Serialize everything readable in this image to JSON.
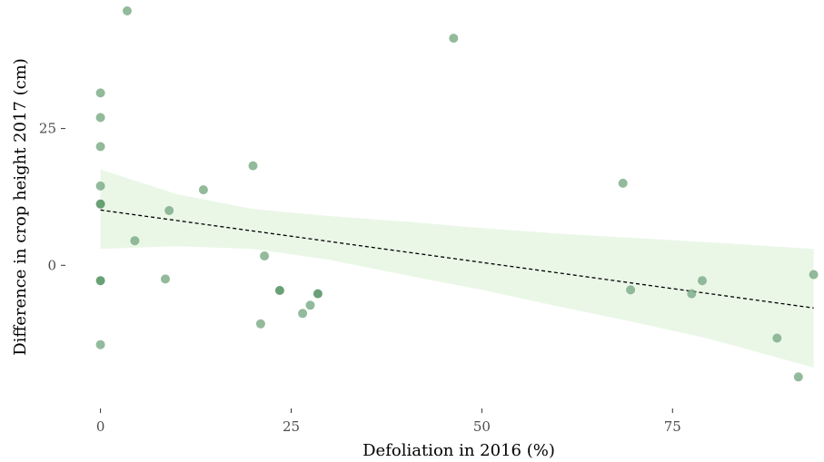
{
  "chart_data": {
    "type": "scatter",
    "title": "",
    "xlabel": "Defoliation in 2016 (%)",
    "ylabel": "Difference in crop height 2017 (cm)",
    "xlim": [
      -1.5,
      94.5
    ],
    "ylim": [
      -25.5,
      46.5
    ],
    "x_ticks": [
      0,
      25,
      50,
      75
    ],
    "y_ticks": [
      0,
      25
    ],
    "x_tick_labels": [
      "0",
      "25",
      "50",
      "75"
    ],
    "y_tick_labels": [
      "0",
      "25"
    ],
    "grid": false,
    "colors": {
      "point": "#7fae8a",
      "point_dark": "#4f8f5e",
      "ribbon": "#d9f0d3",
      "trend": "#000000",
      "tick_text": "#4d4d4d"
    },
    "points": [
      {
        "x": 3.5,
        "y": 46.5
      },
      {
        "x": 46.3,
        "y": 41.5
      },
      {
        "x": 0.0,
        "y": 31.5
      },
      {
        "x": 0.0,
        "y": 27.0
      },
      {
        "x": 0.0,
        "y": 21.7
      },
      {
        "x": 0.0,
        "y": 14.5
      },
      {
        "x": 0.0,
        "y": 11.2,
        "dark": true
      },
      {
        "x": 0.0,
        "y": -2.8,
        "dark": true
      },
      {
        "x": 0.0,
        "y": -14.5
      },
      {
        "x": 4.5,
        "y": 4.5
      },
      {
        "x": 8.5,
        "y": -2.5
      },
      {
        "x": 9.0,
        "y": 10.0
      },
      {
        "x": 13.5,
        "y": 13.8
      },
      {
        "x": 20.0,
        "y": 18.2
      },
      {
        "x": 21.0,
        "y": -10.7
      },
      {
        "x": 21.5,
        "y": 1.7
      },
      {
        "x": 23.5,
        "y": -4.6,
        "dark": true
      },
      {
        "x": 26.5,
        "y": -8.8
      },
      {
        "x": 27.5,
        "y": -7.3
      },
      {
        "x": 28.5,
        "y": -5.2,
        "dark": true
      },
      {
        "x": 68.5,
        "y": 15.0
      },
      {
        "x": 69.5,
        "y": -4.5
      },
      {
        "x": 77.5,
        "y": -5.2
      },
      {
        "x": 78.9,
        "y": -2.8
      },
      {
        "x": 88.7,
        "y": -13.3
      },
      {
        "x": 91.5,
        "y": -20.4
      },
      {
        "x": 93.5,
        "y": -1.7
      }
    ],
    "trend_line": {
      "style": "dashed",
      "x": [
        0,
        93.5
      ],
      "y": [
        10.1,
        -7.8
      ]
    },
    "confidence_band": {
      "x": [
        0,
        10,
        20,
        30,
        40,
        50,
        60,
        70,
        80,
        93.5
      ],
      "upper": [
        17.5,
        13.0,
        10.3,
        9.0,
        8.0,
        6.8,
        5.8,
        5.0,
        4.2,
        3.0
      ],
      "lower": [
        3.0,
        3.5,
        3.0,
        1.0,
        -1.8,
        -4.5,
        -7.5,
        -10.4,
        -13.5,
        -18.7
      ]
    }
  }
}
